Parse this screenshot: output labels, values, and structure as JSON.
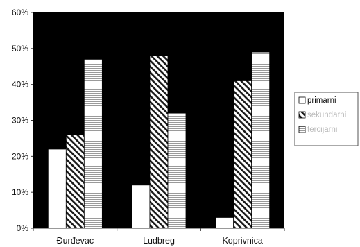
{
  "chart_data": {
    "type": "bar",
    "categories": [
      "Đurđevac",
      "Ludbreg",
      "Koprivnica"
    ],
    "series": [
      {
        "name": "primarni",
        "values": [
          22,
          12,
          3
        ],
        "pattern": "white"
      },
      {
        "name": "sekundarni",
        "values": [
          26,
          48,
          41
        ],
        "pattern": "diagonal-hatch"
      },
      {
        "name": "tercijarni",
        "values": [
          47,
          32,
          49
        ],
        "pattern": "horizontal-stripes"
      }
    ],
    "yticks": [
      "0%",
      "10%",
      "20%",
      "30%",
      "40%",
      "50%",
      "60%"
    ],
    "ylim": [
      0,
      60
    ],
    "grid": false,
    "legend": "right",
    "plot_background": "#000000",
    "legend_text_colors": [
      "#111111",
      "#bbbbbb",
      "#bbbbbb"
    ]
  }
}
